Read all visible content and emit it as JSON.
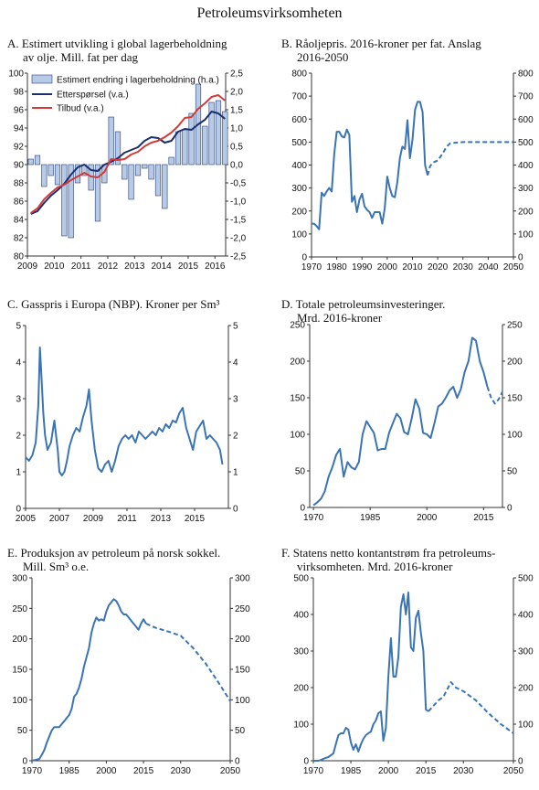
{
  "page_title": "Petroleumsvirksomheten",
  "colors": {
    "blue": "#3a74b5",
    "navy": "#1a2f6e",
    "red": "#d13b3b",
    "bar_fill": "#b7cbe6",
    "bar_stroke": "#2a3f78",
    "axis": "#333333"
  },
  "panels": [
    {
      "letter": "A.",
      "title_lines": [
        "Estimert utvikling i global lagerbeholdning",
        "av olje. Mill. fat per dag"
      ],
      "chart_data": {
        "type": "bar+line",
        "x_ticks": [
          "2009",
          "2010",
          "2011",
          "2012",
          "2013",
          "2014",
          "2015",
          "2016"
        ],
        "ylim_left": [
          80,
          100
        ],
        "yticks_left": [
          "80",
          "82",
          "84",
          "86",
          "88",
          "90",
          "92",
          "94",
          "96",
          "98",
          "100"
        ],
        "ylim_right": [
          -2.5,
          2.5
        ],
        "yticks_right": [
          "-2,5",
          "-2,0",
          "-1,5",
          "-1,0",
          "-0,5",
          "0,0",
          "0,5",
          "1,0",
          "1,5",
          "2,0",
          "2,5"
        ],
        "bars": {
          "name": "Estimert endring i lagerbeholdning (h.a.)",
          "quarters": [
            "2009K1",
            "2009K2",
            "2009K3",
            "2009K4",
            "2010K1",
            "2010K2",
            "2010K3",
            "2010K4",
            "2011K1",
            "2011K2",
            "2011K3",
            "2011K4",
            "2012K1",
            "2012K2",
            "2012K3",
            "2012K4",
            "2013K1",
            "2013K2",
            "2013K3",
            "2013K4",
            "2014K1",
            "2014K2",
            "2014K3",
            "2014K4",
            "2015K1",
            "2015K2",
            "2015K3",
            "2015K4",
            "2016K1",
            "2016K2"
          ],
          "values": [
            0.15,
            0.25,
            -0.6,
            -0.3,
            -0.55,
            -1.95,
            -2.0,
            -0.5,
            -0.3,
            -0.7,
            -1.55,
            -0.5,
            1.3,
            0.9,
            -0.4,
            -0.95,
            -0.3,
            -0.1,
            -0.4,
            -0.85,
            -1.2,
            0.2,
            0.9,
            0.95,
            1.4,
            2.2,
            1.05,
            1.7,
            1.75,
            1.45
          ]
        },
        "series": [
          {
            "name": "Etterspørsel (v.a.)",
            "quarters_values": [
              84.6,
              84.9,
              85.8,
              86.6,
              87.2,
              87.9,
              88.9,
              89.7,
              90.0,
              89.4,
              89.3,
              90.0,
              90.3,
              90.7,
              91.3,
              91.6,
              91.9,
              92.6,
              93.0,
              92.9,
              92.4,
              92.6,
              93.6,
              93.9,
              93.8,
              94.4,
              94.9,
              95.8,
              95.6,
              95.0
            ]
          },
          {
            "name": "Tilbud (v.a.)",
            "quarters_values": [
              84.7,
              85.2,
              86.2,
              86.9,
              87.5,
              87.8,
              88.3,
              88.7,
              89.1,
              88.7,
              88.6,
              89.2,
              90.6,
              90.5,
              90.6,
              91.1,
              91.4,
              92.0,
              92.4,
              92.6,
              93.0,
              93.5,
              94.2,
              95.1,
              95.2,
              96.1,
              96.7,
              97.4,
              97.6,
              97.0
            ]
          }
        ]
      }
    },
    {
      "letter": "B.",
      "title_lines": [
        "Råoljepris. 2016-kroner per fat. Anslag",
        "2016-2050"
      ],
      "chart_data": {
        "type": "line",
        "xlim": [
          1970,
          2050
        ],
        "x_ticks": [
          "1970",
          "1980",
          "1990",
          "2000",
          "2010",
          "2020",
          "2030",
          "2040",
          "2050"
        ],
        "ylim": [
          0,
          800
        ],
        "yticks": [
          "0",
          "100",
          "200",
          "300",
          "400",
          "500",
          "600",
          "700",
          "800"
        ],
        "series": [
          {
            "x": [
              1970,
              1971,
              1972,
              1973,
              1974,
              1975,
              1976,
              1977,
              1978,
              1979,
              1980,
              1981,
              1982,
              1983,
              1984,
              1985,
              1986,
              1987,
              1988,
              1989,
              1990,
              1991,
              1992,
              1993,
              1994,
              1995,
              1996,
              1997,
              1998,
              1999,
              2000,
              2001,
              2002,
              2003,
              2004,
              2005,
              2006,
              2007,
              2008,
              2009,
              2010,
              2011,
              2012,
              2013,
              2014,
              2015,
              2016
            ],
            "y": [
              145,
              145,
              135,
              120,
              280,
              265,
              285,
              300,
              285,
              450,
              545,
              545,
              525,
              520,
              555,
              530,
              240,
              265,
              195,
              250,
              275,
              220,
              205,
              195,
              170,
              195,
              195,
              195,
              145,
              210,
              350,
              300,
              265,
              260,
              325,
              430,
              480,
              470,
              595,
              430,
              510,
              640,
              675,
              675,
              630,
              400,
              355
            ]
          },
          {
            "x": [
              2016,
              2017,
              2018,
              2019,
              2020,
              2021,
              2022,
              2023,
              2024,
              2025,
              2030,
              2040,
              2050
            ],
            "y": [
              355,
              395,
              410,
              415,
              420,
              435,
              450,
              470,
              485,
              495,
              500,
              500,
              500
            ]
          }
        ]
      }
    },
    {
      "letter": "C.",
      "title_lines": [
        "Gasspris i Europa (NBP). Kroner per Sm³"
      ],
      "chart_data": {
        "type": "line",
        "xlim": [
          2005,
          2017
        ],
        "x_ticks": [
          "2005",
          "2007",
          "2009",
          "2011",
          "2013",
          "2015"
        ],
        "ylim": [
          0,
          5
        ],
        "yticks": [
          "0",
          "1",
          "2",
          "3",
          "4",
          "5"
        ],
        "series": [
          {
            "x": [
              2005.0,
              2005.2,
              2005.4,
              2005.6,
              2005.75,
              2005.85,
              2005.95,
              2006.05,
              2006.15,
              2006.3,
              2006.5,
              2006.7,
              2006.9,
              2007.0,
              2007.15,
              2007.3,
              2007.45,
              2007.6,
              2007.8,
              2008.0,
              2008.2,
              2008.4,
              2008.6,
              2008.75,
              2008.9,
              2009.1,
              2009.3,
              2009.5,
              2009.7,
              2009.9,
              2010.1,
              2010.3,
              2010.5,
              2010.7,
              2010.9,
              2011.1,
              2011.3,
              2011.5,
              2011.7,
              2011.9,
              2012.1,
              2012.3,
              2012.5,
              2012.7,
              2012.9,
              2013.1,
              2013.3,
              2013.5,
              2013.7,
              2013.9,
              2014.1,
              2014.3,
              2014.5,
              2014.7,
              2014.9,
              2015.1,
              2015.3,
              2015.5,
              2015.7,
              2015.9,
              2016.1,
              2016.3,
              2016.5,
              2016.65
            ],
            "y": [
              1.4,
              1.3,
              1.45,
              1.8,
              2.8,
              4.4,
              3.5,
              2.6,
              2.0,
              1.6,
              1.8,
              2.4,
              1.6,
              1.0,
              0.9,
              1.0,
              1.3,
              1.7,
              2.0,
              2.2,
              2.1,
              2.5,
              2.8,
              3.25,
              2.4,
              1.6,
              1.1,
              1.0,
              1.2,
              1.3,
              1.0,
              1.3,
              1.7,
              1.9,
              2.0,
              1.9,
              2.0,
              1.8,
              2.1,
              2.0,
              1.9,
              2.0,
              2.1,
              2.0,
              2.2,
              2.1,
              2.3,
              2.2,
              2.4,
              2.35,
              2.6,
              2.75,
              2.2,
              1.9,
              1.6,
              2.1,
              2.25,
              2.4,
              1.9,
              2.0,
              1.9,
              1.8,
              1.6,
              1.2
            ]
          }
        ]
      }
    },
    {
      "letter": "D.",
      "title_lines": [
        "Totale petroleumsinvesteringer.",
        "Mrd. 2016-kroner"
      ],
      "chart_data": {
        "type": "line",
        "xlim": [
          1969,
          2020
        ],
        "x_ticks": [
          "1970",
          "1985",
          "2000",
          "2015"
        ],
        "ylim": [
          0,
          250
        ],
        "yticks": [
          "0",
          "50",
          "100",
          "150",
          "200",
          "250"
        ],
        "series": [
          {
            "x": [
              1970,
              1971,
              1972,
              1973,
              1974,
              1975,
              1976,
              1977,
              1978,
              1979,
              1980,
              1981,
              1982,
              1983,
              1984,
              1985,
              1986,
              1987,
              1988,
              1989,
              1990,
              1991,
              1992,
              1993,
              1994,
              1995,
              1996,
              1997,
              1998,
              1999,
              2000,
              2001,
              2002,
              2003,
              2004,
              2005,
              2006,
              2007,
              2008,
              2009,
              2010,
              2011,
              2012,
              2013,
              2014,
              2015,
              2016
            ],
            "y": [
              3,
              7,
              12,
              22,
              42,
              55,
              72,
              80,
              42,
              62,
              55,
              52,
              62,
              100,
              118,
              110,
              102,
              78,
              80,
              80,
              102,
              115,
              128,
              122,
              103,
              100,
              122,
              148,
              135,
              102,
              100,
              95,
              115,
              138,
              142,
              150,
              160,
              165,
              150,
              162,
              185,
              200,
              232,
              228,
              200,
              185,
              165
            ]
          },
          {
            "x": [
              2016,
              2017,
              2018,
              2019,
              2020
            ],
            "y": [
              165,
              150,
              142,
              148,
              158
            ]
          }
        ]
      }
    },
    {
      "letter": "E.",
      "title_lines": [
        "Produksjon av petroleum på norsk sokkel.",
        "Mill. Sm³ o.e."
      ],
      "chart_data": {
        "type": "line",
        "xlim": [
          1970,
          2050
        ],
        "x_ticks": [
          "1970",
          "1985",
          "2000",
          "2015",
          "2030",
          "2050"
        ],
        "ylim": [
          0,
          300
        ],
        "yticks": [
          "0",
          "50",
          "100",
          "150",
          "200",
          "250",
          "300"
        ],
        "series": [
          {
            "x": [
              1970,
              1971,
              1972,
              1973,
              1974,
              1975,
              1976,
              1977,
              1978,
              1979,
              1980,
              1981,
              1982,
              1983,
              1984,
              1985,
              1986,
              1987,
              1988,
              1989,
              1990,
              1991,
              1992,
              1993,
              1994,
              1995,
              1996,
              1997,
              1998,
              1999,
              2000,
              2001,
              2002,
              2003,
              2004,
              2005,
              2006,
              2007,
              2008,
              2009,
              2010,
              2011,
              2012,
              2013,
              2014,
              2015,
              2016
            ],
            "y": [
              0,
              1,
              2,
              3,
              10,
              18,
              30,
              40,
              50,
              55,
              55,
              55,
              60,
              65,
              70,
              75,
              85,
              105,
              110,
              120,
              135,
              155,
              170,
              185,
              210,
              225,
              235,
              230,
              232,
              230,
              245,
              255,
              260,
              265,
              262,
              255,
              245,
              240,
              240,
              235,
              230,
              225,
              220,
              215,
              225,
              232,
              225
            ]
          },
          {
            "x": [
              2016,
              2020,
              2025,
              2030,
              2035,
              2040,
              2045,
              2050
            ],
            "y": [
              225,
              218,
              212,
              205,
              185,
              160,
              130,
              98
            ]
          }
        ]
      }
    },
    {
      "letter": "F.",
      "title_lines": [
        "Statens netto kontantstrøm fra petroleums-",
        "virksomheten. Mrd. 2016-kroner"
      ],
      "chart_data": {
        "type": "line",
        "xlim": [
          1970,
          2050
        ],
        "x_ticks": [
          "1970",
          "1985",
          "2000",
          "2015",
          "2030",
          "2050"
        ],
        "ylim": [
          0,
          500
        ],
        "yticks": [
          "0",
          "100",
          "200",
          "300",
          "400",
          "500"
        ],
        "series": [
          {
            "x": [
              1970,
              1971,
              1972,
              1973,
              1974,
              1975,
              1976,
              1977,
              1978,
              1979,
              1980,
              1981,
              1982,
              1983,
              1984,
              1985,
              1986,
              1987,
              1988,
              1989,
              1990,
              1991,
              1992,
              1993,
              1994,
              1995,
              1996,
              1997,
              1998,
              1999,
              2000,
              2001,
              2002,
              2003,
              2004,
              2005,
              2006,
              2007,
              2008,
              2009,
              2010,
              2011,
              2012,
              2013,
              2014,
              2015,
              2016
            ],
            "y": [
              0,
              0,
              0,
              2,
              5,
              8,
              10,
              15,
              20,
              45,
              70,
              75,
              75,
              90,
              85,
              50,
              30,
              45,
              25,
              45,
              60,
              70,
              75,
              80,
              100,
              110,
              130,
              135,
              55,
              90,
              230,
              335,
              230,
              230,
              285,
              420,
              455,
              400,
              460,
              310,
              300,
              390,
              410,
              350,
              300,
              140,
              135
            ]
          },
          {
            "x": [
              2016,
              2018,
              2020,
              2022,
              2025,
              2027,
              2030,
              2035,
              2040,
              2045,
              2050
            ],
            "y": [
              135,
              150,
              165,
              175,
              215,
              200,
              190,
              165,
              130,
              100,
              75
            ]
          }
        ]
      }
    }
  ]
}
